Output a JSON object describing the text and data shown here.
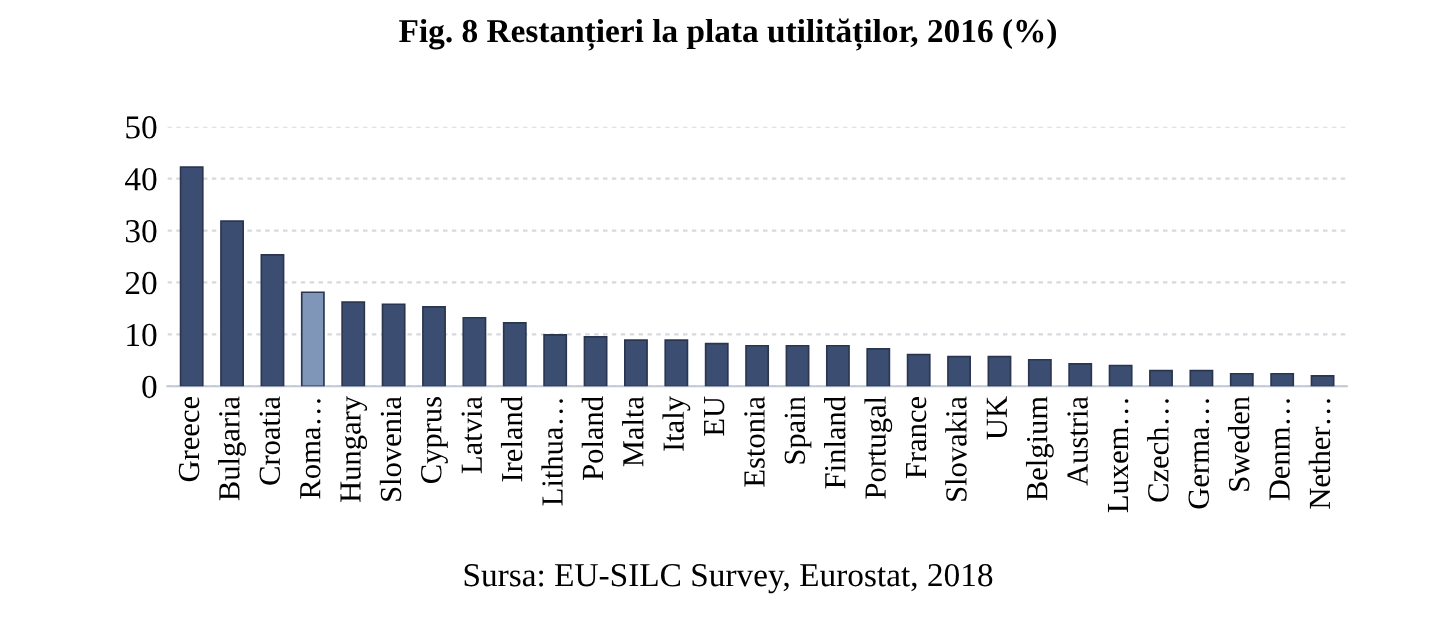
{
  "chart_data": {
    "type": "bar",
    "title": "Fig. 8 Restanțieri la plata utilităților, 2016 (%)",
    "categories": [
      "Greece",
      "Bulgaria",
      "Croatia",
      "Roma…",
      "Hungary",
      "Slovenia",
      "Cyprus",
      "Latvia",
      "Ireland",
      "Lithua…",
      "Poland",
      "Malta",
      "Italy",
      "EU",
      "Estonia",
      "Spain",
      "Finland",
      "Portugal",
      "France",
      "Slovakia",
      "UK",
      "Belgium",
      "Austria",
      "Luxem…",
      "Czech…",
      "Germa…",
      "Sweden",
      "Denm…",
      "Nether…"
    ],
    "values": [
      42.2,
      31.8,
      25.3,
      18.1,
      16.2,
      15.8,
      15.3,
      13.2,
      12.2,
      9.9,
      9.5,
      8.9,
      8.9,
      8.2,
      7.8,
      7.8,
      7.8,
      7.2,
      6.1,
      5.7,
      5.7,
      5.1,
      4.3,
      4.0,
      3.0,
      3.0,
      2.4,
      2.4,
      2.0
    ],
    "colors": [
      "#3b4e72",
      "#3b4e72",
      "#3b4e72",
      "#7f96b8",
      "#3b4e72",
      "#3b4e72",
      "#3b4e72",
      "#3b4e72",
      "#3b4e72",
      "#3b4e72",
      "#3b4e72",
      "#3b4e72",
      "#3b4e72",
      "#3b4e72",
      "#3b4e72",
      "#3b4e72",
      "#3b4e72",
      "#3b4e72",
      "#3b4e72",
      "#3b4e72",
      "#3b4e72",
      "#3b4e72",
      "#3b4e72",
      "#3b4e72",
      "#3b4e72",
      "#3b4e72",
      "#3b4e72",
      "#3b4e72",
      "#3b4e72"
    ],
    "ylim": [
      0,
      50
    ],
    "yticks": [
      0,
      10,
      20,
      30,
      40,
      50
    ],
    "grid": "y",
    "annotations": [
      "Sursa: EU-SILC Survey, Eurostat, 2018"
    ]
  }
}
